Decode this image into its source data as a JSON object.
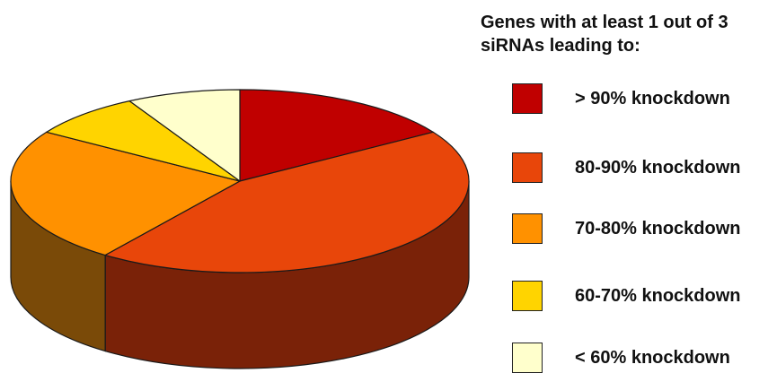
{
  "chart_data": {
    "type": "pie",
    "title": "",
    "legend": {
      "title_lines": [
        "Genes with at least 1 out of 3",
        "siRNAs leading to:"
      ],
      "placement": "right"
    },
    "slices": [
      {
        "label": "> 90% knockdown",
        "value": 16,
        "color": "#c00000",
        "side_color": "#701000"
      },
      {
        "label": "80-90% knockdown",
        "value": 44,
        "color": "#e8460a",
        "side_color": "#7a2208"
      },
      {
        "label": "70-80% knockdown",
        "value": 24,
        "color": "#ff9100",
        "side_color": "#7a4a08"
      },
      {
        "label": "60-70% knockdown",
        "value": 8,
        "color": "#ffd400",
        "side_color": "#806600"
      },
      {
        "label": "< 60% knockdown",
        "value": 8,
        "color": "#ffffcc",
        "side_color": "#807e66"
      }
    ]
  }
}
